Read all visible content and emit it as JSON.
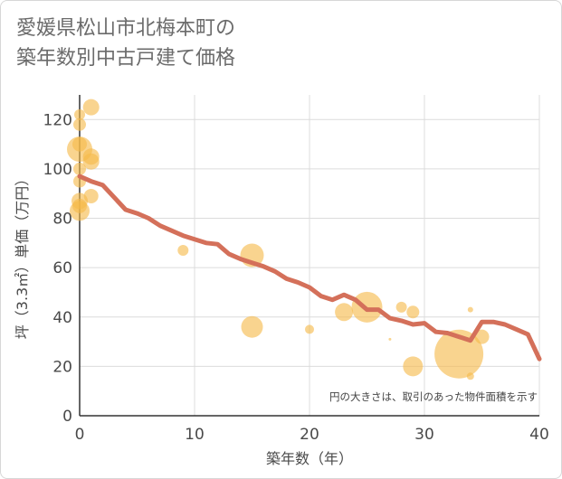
{
  "chart_data": {
    "type": "scatter",
    "title_lines": [
      "愛媛県松山市北梅本町の",
      "築年数別中古戸建て価格"
    ],
    "xlabel": "築年数（年）",
    "ylabel": "坪（3.3㎡）単価（万円）",
    "note": "円の大きさは、取引のあった物件面積を示す",
    "xlim": [
      0,
      40
    ],
    "ylim": [
      0,
      130
    ],
    "xticks": [
      0,
      10,
      20,
      30,
      40
    ],
    "yticks": [
      0,
      20,
      40,
      60,
      80,
      100,
      120
    ],
    "grid": true,
    "colors": {
      "bubble": "#f5b94a",
      "line": "#d4705a",
      "grid": "#dcdcdc"
    },
    "bubbles": [
      {
        "x": 0,
        "y": 122,
        "size": 6
      },
      {
        "x": 0,
        "y": 118,
        "size": 7
      },
      {
        "x": 0,
        "y": 110,
        "size": 8
      },
      {
        "x": 0,
        "y": 108,
        "size": 14
      },
      {
        "x": 0,
        "y": 100,
        "size": 7
      },
      {
        "x": 0,
        "y": 95,
        "size": 7
      },
      {
        "x": 0,
        "y": 87,
        "size": 9
      },
      {
        "x": 0,
        "y": 85,
        "size": 8
      },
      {
        "x": 0,
        "y": 83,
        "size": 11
      },
      {
        "x": 1,
        "y": 125,
        "size": 9
      },
      {
        "x": 1,
        "y": 105,
        "size": 9
      },
      {
        "x": 1,
        "y": 103,
        "size": 9
      },
      {
        "x": 1,
        "y": 89,
        "size": 8
      },
      {
        "x": 9,
        "y": 67,
        "size": 6
      },
      {
        "x": 15,
        "y": 65,
        "size": 13
      },
      {
        "x": 15,
        "y": 36,
        "size": 12
      },
      {
        "x": 20,
        "y": 35,
        "size": 5
      },
      {
        "x": 23,
        "y": 42,
        "size": 10
      },
      {
        "x": 25,
        "y": 44,
        "size": 17
      },
      {
        "x": 27,
        "y": 31,
        "size": 1.5
      },
      {
        "x": 28,
        "y": 44,
        "size": 6
      },
      {
        "x": 29,
        "y": 42,
        "size": 7
      },
      {
        "x": 29,
        "y": 20,
        "size": 11
      },
      {
        "x": 33,
        "y": 25,
        "size": 27
      },
      {
        "x": 34,
        "y": 43,
        "size": 3
      },
      {
        "x": 34,
        "y": 16,
        "size": 4
      },
      {
        "x": 35,
        "y": 32,
        "size": 8
      }
    ],
    "series": [
      {
        "x": [
          0,
          1,
          2,
          3,
          4,
          5,
          6,
          7,
          8,
          9,
          10,
          11,
          12,
          13,
          14,
          15,
          16,
          17,
          18,
          19,
          20,
          21,
          22,
          23,
          24,
          25,
          26,
          27,
          28,
          29,
          30,
          31,
          32,
          33,
          34,
          35,
          36,
          37,
          38,
          39,
          40
        ],
        "y": [
          97,
          95,
          93.5,
          88.5,
          83.5,
          82,
          80,
          77,
          75,
          73,
          71.5,
          70,
          69.5,
          65.5,
          63.5,
          62,
          60.5,
          58.5,
          55.5,
          54,
          52,
          48.5,
          47,
          49,
          47,
          43,
          43,
          39.5,
          38.5,
          37,
          37.5,
          34,
          33.5,
          32,
          30.5,
          38,
          38,
          37,
          35,
          33,
          23
        ]
      }
    ]
  }
}
